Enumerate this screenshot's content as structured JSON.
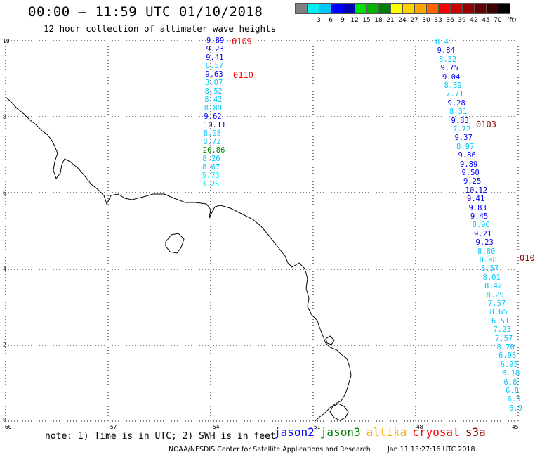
{
  "header": {
    "title": "00:00 – 11:59 UTC 01/10/2018",
    "subtitle": "12 hour collection of altimeter wave heights"
  },
  "color_scale": {
    "colors": [
      "#7f7f7f",
      "#00f0f0",
      "#00c8ff",
      "#0000ff",
      "#0000b4",
      "#00e000",
      "#00b400",
      "#008000",
      "#ffff00",
      "#ffd200",
      "#ffa500",
      "#ff6400",
      "#ff0000",
      "#c80000",
      "#960000",
      "#640000",
      "#3c0000",
      "#000000"
    ],
    "labels": [
      "3",
      "6",
      "9",
      "12",
      "15",
      "18",
      "21",
      "24",
      "27",
      "30",
      "33",
      "36",
      "39",
      "42",
      "45",
      "70"
    ],
    "unit": "(ft)"
  },
  "map": {
    "y_ticks": [
      "10",
      "8",
      "6",
      "4",
      "2",
      "0"
    ],
    "x_ticks": [
      "-60",
      "-57",
      "-54",
      "-51",
      "-48",
      "-45"
    ],
    "tracks": [
      {
        "id": "0109",
        "label": "0109",
        "color": "#ff0000"
      },
      {
        "id": "0110",
        "label": "0110",
        "color": "#ff0000"
      },
      {
        "id": "0103",
        "label": "0103",
        "color": "#8b0000"
      },
      {
        "id": "010",
        "label": "010",
        "color": "#8b0000"
      }
    ],
    "track_left": [
      {
        "v": "9.89",
        "c": "#0000ff"
      },
      {
        "v": "9.23",
        "c": "#0000ff"
      },
      {
        "v": "9.41",
        "c": "#0000ff"
      },
      {
        "v": "8.57",
        "c": "#00c8ff"
      },
      {
        "v": "9.63",
        "c": "#0000ff"
      },
      {
        "v": "8.07",
        "c": "#00c8ff"
      },
      {
        "v": "8.52",
        "c": "#00c8ff"
      },
      {
        "v": "8.42",
        "c": "#00c8ff"
      },
      {
        "v": "8.89",
        "c": "#00c8ff"
      },
      {
        "v": "9.62",
        "c": "#0000ff"
      },
      {
        "v": "10.11",
        "c": "#0000b4"
      },
      {
        "v": "8.08",
        "c": "#00c8ff"
      },
      {
        "v": "8.72",
        "c": "#00c8ff"
      },
      {
        "v": "20.86",
        "c": "#008000"
      },
      {
        "v": "8.26",
        "c": "#00c8ff"
      },
      {
        "v": "8.67",
        "c": "#00c8ff"
      },
      {
        "v": "5.73",
        "c": "#00f0f0"
      },
      {
        "v": "3.26",
        "c": "#00f0f0"
      }
    ],
    "track_right": [
      {
        "v": "8.41",
        "c": "#00c8ff"
      },
      {
        "v": "9.84",
        "c": "#0000ff"
      },
      {
        "v": "8.32",
        "c": "#00c8ff"
      },
      {
        "v": "9.75",
        "c": "#0000ff"
      },
      {
        "v": "9.04",
        "c": "#0000ff"
      },
      {
        "v": "8.39",
        "c": "#00c8ff"
      },
      {
        "v": "7.71",
        "c": "#00c8ff"
      },
      {
        "v": "9.28",
        "c": "#0000ff"
      },
      {
        "v": "8.31",
        "c": "#00c8ff"
      },
      {
        "v": "9.83",
        "c": "#0000ff"
      },
      {
        "v": "7.72",
        "c": "#00c8ff"
      },
      {
        "v": "9.37",
        "c": "#0000ff"
      },
      {
        "v": "8.97",
        "c": "#00c8ff"
      },
      {
        "v": "9.86",
        "c": "#0000ff"
      },
      {
        "v": "9.89",
        "c": "#0000ff"
      },
      {
        "v": "9.50",
        "c": "#0000ff"
      },
      {
        "v": "9.25",
        "c": "#0000ff"
      },
      {
        "v": "10.12",
        "c": "#0000b4"
      },
      {
        "v": "9.41",
        "c": "#0000ff"
      },
      {
        "v": "9.83",
        "c": "#0000ff"
      },
      {
        "v": "9.45",
        "c": "#0000ff"
      },
      {
        "v": "8.90",
        "c": "#00c8ff"
      },
      {
        "v": "9.21",
        "c": "#0000ff"
      },
      {
        "v": "9.23",
        "c": "#0000ff"
      },
      {
        "v": "8.80",
        "c": "#00c8ff"
      },
      {
        "v": "8.98",
        "c": "#00c8ff"
      },
      {
        "v": "8.57",
        "c": "#00c8ff"
      },
      {
        "v": "8.01",
        "c": "#00c8ff"
      },
      {
        "v": "8.42",
        "c": "#00c8ff"
      },
      {
        "v": "8.29",
        "c": "#00c8ff"
      },
      {
        "v": "7.57",
        "c": "#00c8ff"
      },
      {
        "v": "8.65",
        "c": "#00c8ff"
      },
      {
        "v": "6.51",
        "c": "#00c8ff"
      },
      {
        "v": "7.23",
        "c": "#00c8ff"
      },
      {
        "v": "7.57",
        "c": "#00c8ff"
      },
      {
        "v": "8.70",
        "c": "#00c8ff"
      },
      {
        "v": "6.98",
        "c": "#00c8ff"
      },
      {
        "v": "6.95",
        "c": "#00c8ff"
      },
      {
        "v": "6.18",
        "c": "#00c8ff"
      },
      {
        "v": "6.8",
        "c": "#00c8ff"
      },
      {
        "v": "6.8",
        "c": "#00c8ff"
      },
      {
        "v": "6.5",
        "c": "#00c8ff"
      },
      {
        "v": "6.9",
        "c": "#00c8ff"
      }
    ]
  },
  "footer": {
    "note": "note: 1) Time is in UTC; 2) SWH is in feet",
    "legend": [
      {
        "name": "jason2",
        "color": "#0000ff"
      },
      {
        "name": "jason3",
        "color": "#008000"
      },
      {
        "name": "altika",
        "color": "#ffa500"
      },
      {
        "name": "cryosat",
        "color": "#ff0000"
      },
      {
        "name": "s3a",
        "color": "#8b0000"
      }
    ],
    "credit": "NOAA/NESDIS Center for Satellite Applications and Research",
    "timestamp": "Jan 11 13:27:16 UTC 2018"
  }
}
